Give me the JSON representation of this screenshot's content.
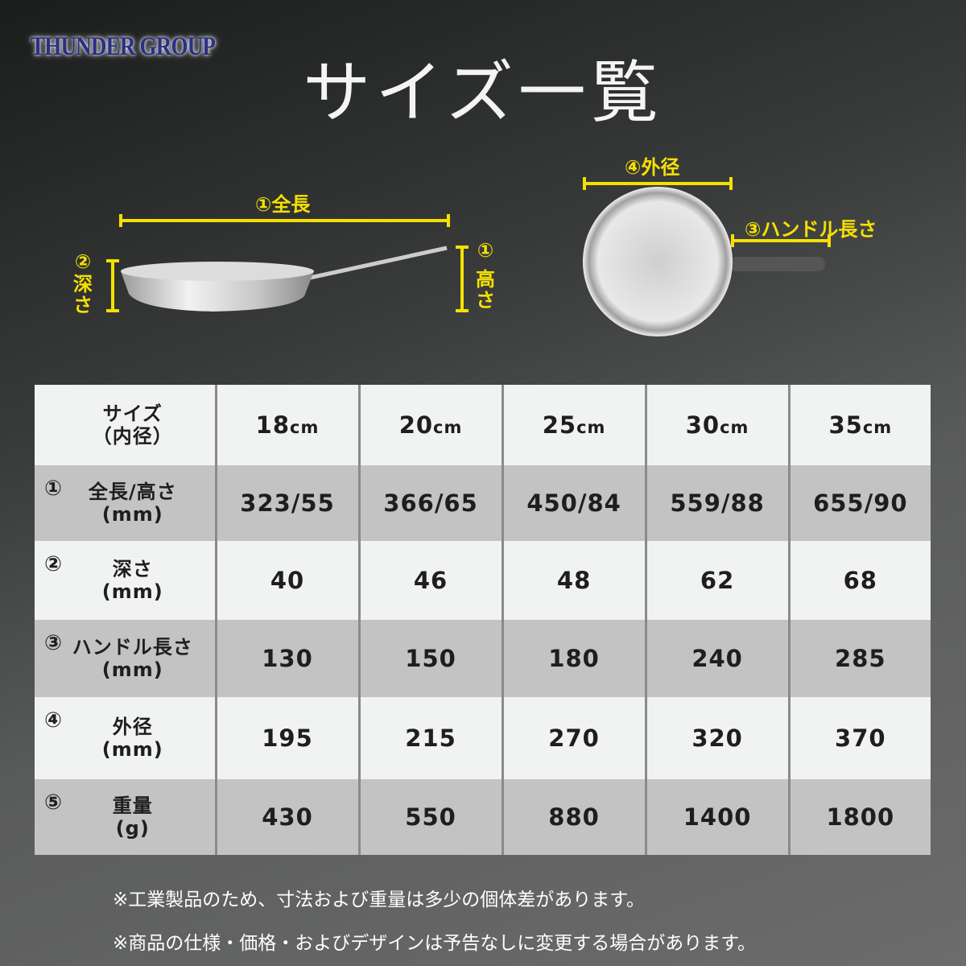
{
  "brand": "THUNDER GROUP",
  "title": "サイズ一覧",
  "diagram": {
    "total_length": "①全長",
    "depth_num": "②",
    "depth": "深さ",
    "height_num": "①",
    "height": "高さ",
    "outer_diameter": "④外径",
    "handle_length": "③ハンドル長さ",
    "accent_color": "#f5e000"
  },
  "table": {
    "header": {
      "label": "サイズ",
      "sub": "（内径）",
      "sizes": [
        {
          "v": "18",
          "u": "cm"
        },
        {
          "v": "20",
          "u": "cm"
        },
        {
          "v": "25",
          "u": "cm"
        },
        {
          "v": "30",
          "u": "cm"
        },
        {
          "v": "35",
          "u": "cm"
        }
      ]
    },
    "rows": [
      {
        "num": "①",
        "label": "全長/高さ",
        "unit": "(mm)",
        "values": [
          "323/55",
          "366/65",
          "450/84",
          "559/88",
          "655/90"
        ]
      },
      {
        "num": "②",
        "label": "深さ",
        "unit": "(mm)",
        "values": [
          "40",
          "46",
          "48",
          "62",
          "68"
        ]
      },
      {
        "num": "③",
        "label": "ハンドル長さ",
        "unit": "(mm)",
        "values": [
          "130",
          "150",
          "180",
          "240",
          "285"
        ]
      },
      {
        "num": "④",
        "label": "外径",
        "unit": "(mm)",
        "values": [
          "195",
          "215",
          "270",
          "320",
          "370"
        ]
      },
      {
        "num": "⑤",
        "label": "重量",
        "unit": "(g)",
        "values": [
          "430",
          "550",
          "880",
          "1400",
          "1800"
        ]
      }
    ]
  },
  "notes": [
    "※工業製品のため、寸法および重量は多少の個体差があります。",
    "※商品の仕様・価格・およびデザインは予告なしに変更する場合があります。"
  ]
}
